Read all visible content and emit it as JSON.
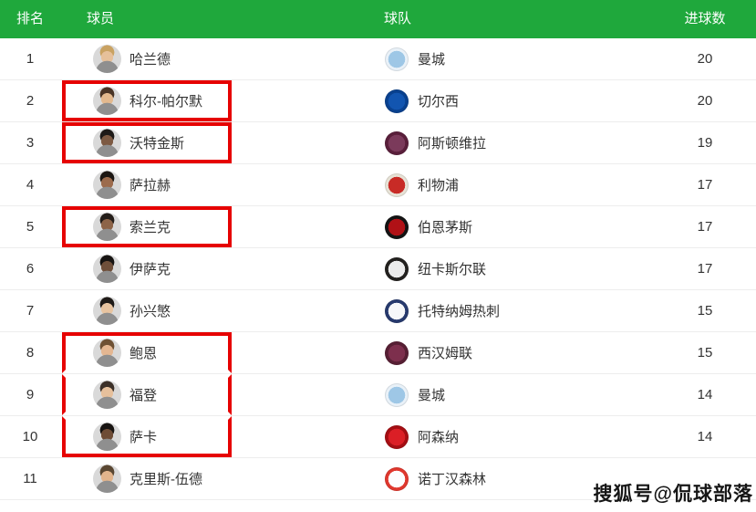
{
  "header": {
    "rank": "排名",
    "player": "球员",
    "team": "球队",
    "goals": "进球数"
  },
  "rows": [
    {
      "rank": "1",
      "player": "哈兰德",
      "team": "曼城",
      "goals": "20",
      "highlight": "none",
      "avatar": {
        "skin": "#e6c09a",
        "hair": "#c9a262"
      },
      "logo": {
        "c1": "#e9f1f8",
        "c2": "#9ec7e6"
      }
    },
    {
      "rank": "2",
      "player": "科尔-帕尔默",
      "team": "切尔西",
      "goals": "20",
      "highlight": "single",
      "avatar": {
        "skin": "#e3b98e",
        "hair": "#4a3526"
      },
      "logo": {
        "c1": "#09418f",
        "c2": "#1255b0"
      }
    },
    {
      "rank": "3",
      "player": "沃特金斯",
      "team": "阿斯顿维拉",
      "goals": "19",
      "highlight": "single",
      "avatar": {
        "skin": "#7d5a43",
        "hair": "#1e1a18"
      },
      "logo": {
        "c1": "#5a1f3b",
        "c2": "#7b3a5b"
      }
    },
    {
      "rank": "4",
      "player": "萨拉赫",
      "team": "利物浦",
      "goals": "17",
      "highlight": "none",
      "avatar": {
        "skin": "#9c6b4c",
        "hair": "#1c1713"
      },
      "logo": {
        "c1": "#e7e2d6",
        "c2": "#c82b26"
      }
    },
    {
      "rank": "5",
      "player": "索兰克",
      "team": "伯恩茅斯",
      "goals": "17",
      "highlight": "single",
      "avatar": {
        "skin": "#8d6448",
        "hair": "#241e1a"
      },
      "logo": {
        "c1": "#141414",
        "c2": "#b01116"
      }
    },
    {
      "rank": "6",
      "player": "伊萨克",
      "team": "纽卡斯尔联",
      "goals": "17",
      "highlight": "none",
      "avatar": {
        "skin": "#6f4f3a",
        "hair": "#171412"
      },
      "logo": {
        "c1": "#23211f",
        "c2": "#ececec"
      }
    },
    {
      "rank": "7",
      "player": "孙兴慜",
      "team": "托特纳姆热刺",
      "goals": "15",
      "highlight": "none",
      "avatar": {
        "skin": "#e8c4a0",
        "hair": "#1f1b18"
      },
      "logo": {
        "c1": "#273a6e",
        "c2": "#f6f7f9"
      }
    },
    {
      "rank": "8",
      "player": "鲍恩",
      "team": "西汉姆联",
      "goals": "15",
      "highlight": "top",
      "avatar": {
        "skin": "#e4b792",
        "hair": "#6e5134"
      },
      "logo": {
        "c1": "#571f34",
        "c2": "#7d2f4d"
      }
    },
    {
      "rank": "9",
      "player": "福登",
      "team": "曼城",
      "goals": "14",
      "highlight": "mid",
      "avatar": {
        "skin": "#e6c09c",
        "hair": "#3c3129"
      },
      "logo": {
        "c1": "#e9f1f8",
        "c2": "#9ec7e6"
      }
    },
    {
      "rank": "10",
      "player": "萨卡",
      "team": "阿森纳",
      "goals": "14",
      "highlight": "bottom",
      "avatar": {
        "skin": "#6e4c36",
        "hair": "#181412"
      },
      "logo": {
        "c1": "#a50e13",
        "c2": "#db1f26"
      }
    },
    {
      "rank": "11",
      "player": "克里斯-伍德",
      "team": "诺丁汉森林",
      "goals": "",
      "highlight": "none",
      "avatar": {
        "skin": "#e2b48c",
        "hair": "#5a4732"
      },
      "logo": {
        "c1": "#e0382e",
        "c2": "#fdfdfd"
      }
    }
  ],
  "watermark": "搜狐号@侃球部落",
  "colors": {
    "header_bg": "#1fa83c",
    "highlight": "#e60202",
    "row_text": "#333333",
    "separator": "#ededed"
  }
}
